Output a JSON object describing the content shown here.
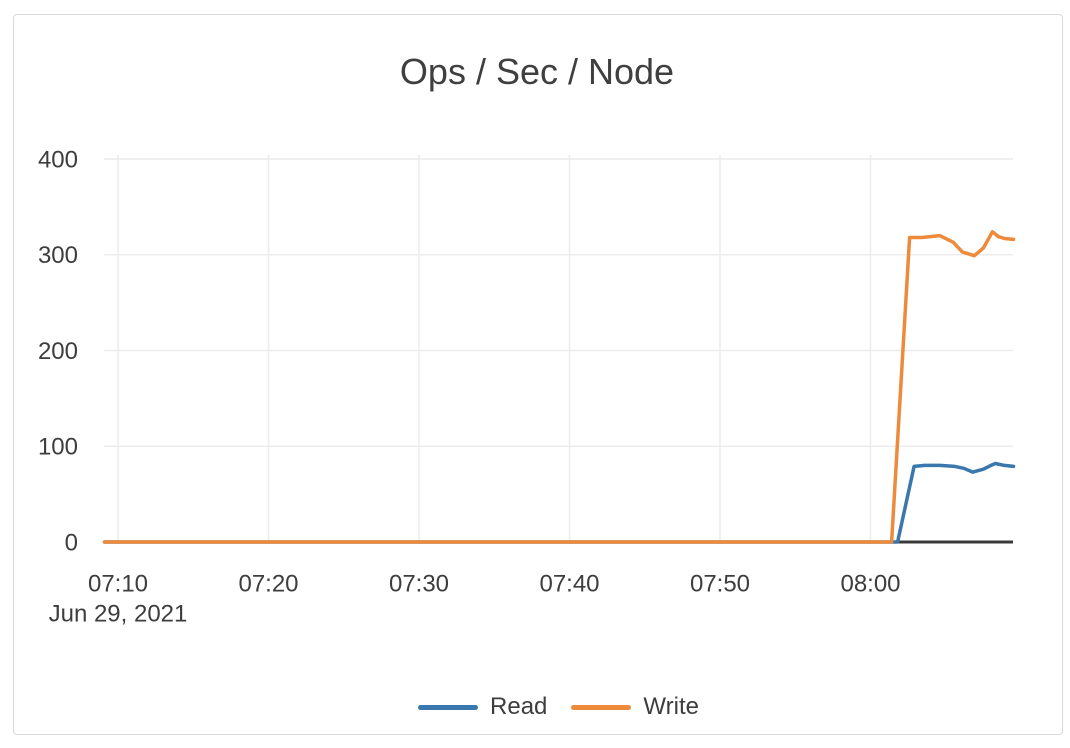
{
  "card": {
    "background": "#ffffff",
    "border_color": "#d9d9d9"
  },
  "chart_data": {
    "type": "line",
    "title": "Ops / Sec / Node",
    "x_unit": "minutes after 07:00 on Jun 29, 2021",
    "x_date_label": {
      "text": "Jun 29, 2021",
      "minute": 10
    },
    "x_ticks": [
      {
        "label": "07:10",
        "minute": 10
      },
      {
        "label": "07:20",
        "minute": 20
      },
      {
        "label": "07:30",
        "minute": 30
      },
      {
        "label": "07:40",
        "minute": 40
      },
      {
        "label": "07:50",
        "minute": 50
      },
      {
        "label": "08:00",
        "minute": 60
      }
    ],
    "xlim_minutes": [
      9.1,
      69.5
    ],
    "y_ticks": [
      {
        "label": "0",
        "value": 0
      },
      {
        "label": "100",
        "value": 100
      },
      {
        "label": "200",
        "value": 200
      },
      {
        "label": "300",
        "value": 300
      },
      {
        "label": "400",
        "value": 400
      }
    ],
    "ylim": [
      0,
      405
    ],
    "grid": true,
    "legend_position": "bottom-center",
    "colors": {
      "grid": "#ececec",
      "axis_line": "#3a3a3a",
      "text": "#3d3d3d"
    },
    "series": [
      {
        "name": "Read",
        "color": "#3a77ad",
        "points": [
          [
            9.1,
            0
          ],
          [
            20,
            0
          ],
          [
            30,
            0
          ],
          [
            40,
            0
          ],
          [
            50,
            0
          ],
          [
            55,
            0
          ],
          [
            58,
            0
          ],
          [
            60,
            0
          ],
          [
            61.8,
            0
          ],
          [
            62.9,
            79
          ],
          [
            63.6,
            80
          ],
          [
            64.6,
            80
          ],
          [
            65.6,
            79
          ],
          [
            66.2,
            77
          ],
          [
            66.8,
            73
          ],
          [
            67.5,
            76
          ],
          [
            68.0,
            80
          ],
          [
            68.3,
            82
          ],
          [
            68.9,
            80
          ],
          [
            69.5,
            79
          ]
        ]
      },
      {
        "name": "Write",
        "color": "#ee8a3b",
        "points": [
          [
            9.1,
            0
          ],
          [
            20,
            0
          ],
          [
            30,
            0
          ],
          [
            40,
            0
          ],
          [
            50,
            0
          ],
          [
            55,
            0
          ],
          [
            58,
            0
          ],
          [
            60,
            0
          ],
          [
            61.4,
            0
          ],
          [
            62.6,
            318
          ],
          [
            63.4,
            318
          ],
          [
            64.0,
            319
          ],
          [
            64.6,
            320
          ],
          [
            65.5,
            313
          ],
          [
            66.1,
            303
          ],
          [
            66.9,
            299
          ],
          [
            67.5,
            307
          ],
          [
            68.1,
            324
          ],
          [
            68.5,
            319
          ],
          [
            68.9,
            317
          ],
          [
            69.5,
            316
          ]
        ]
      }
    ]
  }
}
